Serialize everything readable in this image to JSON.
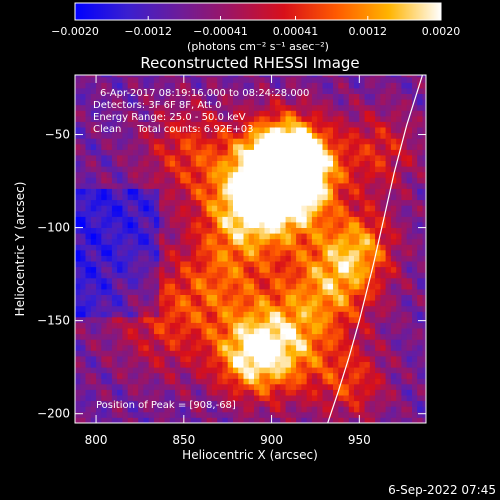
{
  "chart_data": {
    "type": "heatmap",
    "title": "Reconstructed RHESSI Image",
    "xlabel": "Heliocentric X (arcsec)",
    "ylabel": "Heliocentric Y (arcsec)",
    "xlim": [
      788,
      988
    ],
    "ylim": [
      -205,
      -18
    ],
    "x_ticks": [
      {
        "value": 800,
        "label": "800"
      },
      {
        "value": 850,
        "label": "850"
      },
      {
        "value": 900,
        "label": "900"
      },
      {
        "value": 950,
        "label": "950"
      }
    ],
    "y_ticks": [
      {
        "value": -50,
        "label": "−50"
      },
      {
        "value": -100,
        "label": "−100"
      },
      {
        "value": -150,
        "label": "−150"
      },
      {
        "value": -200,
        "label": "−200"
      }
    ],
    "colorbar": {
      "range": [
        -0.002,
        0.002
      ],
      "ticks": [
        {
          "value": -0.002,
          "label": "−0.0020"
        },
        {
          "value": -0.0012,
          "label": "−0.0012"
        },
        {
          "value": -0.00041,
          "label": "−0.00041"
        },
        {
          "value": 0.00041,
          "label": "0.00041"
        },
        {
          "value": 0.0012,
          "label": "0.0012"
        },
        {
          "value": 0.002,
          "label": "0.0020"
        }
      ],
      "units": "(photons cm⁻² s⁻¹ asec⁻²)",
      "colors": [
        "#0000ff",
        "#3a1fd0",
        "#6d1c9a",
        "#a01460",
        "#d8101a",
        "#ff5a00",
        "#ffb400",
        "#ffffff"
      ]
    },
    "annotations": [
      "6-Apr-2017 08:19:16.000 to 08:24:28.000",
      "Detectors: 3F 6F 8F, Att 0",
      "Energy Range: 25.0 - 50.0 keV",
      "Clean     Total counts: 6.92E+03"
    ],
    "peak_label": "Position of Peak = [908,-68]",
    "peak": [
      908,
      -68
    ],
    "limb": {
      "x": [
        986,
        977,
        970,
        964,
        958,
        950,
        944,
        938,
        932
      ],
      "y": [
        -18,
        -45,
        -70,
        -95,
        -120,
        -150,
        -170,
        -188,
        -205
      ]
    }
  },
  "footer": {
    "date": "6-Sep-2022 07:45"
  }
}
